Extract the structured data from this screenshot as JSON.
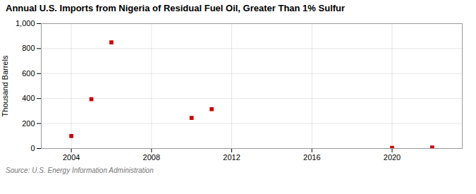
{
  "chart_data": {
    "type": "scatter",
    "title": "Annual U.S. Imports from Nigeria of Residual Fuel Oil, Greater Than 1% Sulfur",
    "ylabel": "Thousand Barrels",
    "source": "Source: U.S. Energy Information Administration",
    "x": [
      2004,
      2005,
      2006,
      2010,
      2011,
      2020,
      2022
    ],
    "values": [
      100,
      395,
      850,
      245,
      315,
      5,
      8
    ],
    "color": "#cc0000",
    "marker": "square",
    "xlim": [
      2002.5,
      2023.5
    ],
    "xticks": [
      2004,
      2008,
      2012,
      2016,
      2020
    ],
    "ylim": [
      0,
      1000
    ],
    "yticks": [
      0,
      200,
      400,
      600,
      800,
      {
        "value": 1000,
        "label": "1,000"
      }
    ],
    "grid": true
  }
}
